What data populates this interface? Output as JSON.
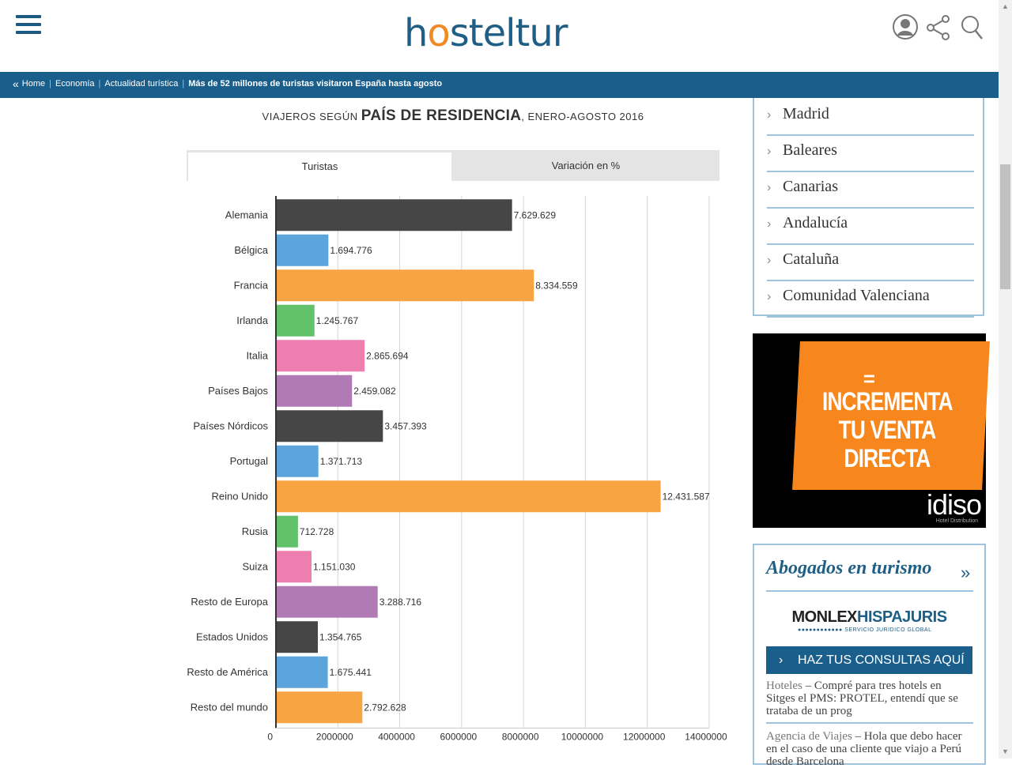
{
  "header": {
    "logo_pre": "h",
    "logo_o": "o",
    "logo_post": "steltur"
  },
  "breadcrumb": {
    "items": [
      "Home",
      "Economía",
      "Actualidad turística"
    ],
    "current": "Más de 52 millones de turistas visitaron España hasta agosto"
  },
  "chart_section": {
    "title_pre": "VIAJEROS SEGÚN ",
    "title_bold": "PAÍS DE RESIDENCIA",
    "title_post": ", ENERO-AGOSTO 2016",
    "tabs": [
      {
        "label": "Turistas",
        "active": true
      },
      {
        "label": "Variación en %",
        "active": false
      }
    ]
  },
  "chart_data": {
    "type": "bar",
    "orientation": "horizontal",
    "categories": [
      "Alemania",
      "Bélgica",
      "Francia",
      "Irlanda",
      "Italia",
      "Países Bajos",
      "Países Nórdicos",
      "Portugal",
      "Reino Unido",
      "Rusia",
      "Suiza",
      "Resto de Europa",
      "Estados Unidos",
      "Resto de América",
      "Resto del mundo"
    ],
    "values": [
      7629629,
      1694776,
      8334559,
      1245767,
      2865694,
      2459082,
      3457393,
      1371713,
      12431587,
      712728,
      1151030,
      3288716,
      1354765,
      1675441,
      2792628
    ],
    "value_labels": [
      "7.629.629",
      "1.694.776",
      "8.334.559",
      "1.245.767",
      "2.865.694",
      "2.459.082",
      "3.457.393",
      "1.371.713",
      "12.431.587",
      "712.728",
      "1.151.030",
      "3.288.716",
      "1.354.765",
      "1.675.441",
      "2.792.628"
    ],
    "colors": [
      "#464646",
      "#5ba4dc",
      "#f8a443",
      "#64c16b",
      "#ef7eb0",
      "#b07ab4"
    ],
    "xlim": [
      0,
      14000000
    ],
    "xticks": [
      0,
      2000000,
      4000000,
      6000000,
      8000000,
      10000000,
      12000000,
      14000000
    ],
    "xtick_labels": [
      "0",
      "2000000",
      "4000000",
      "6000000",
      "8000000",
      "10000000",
      "12000000",
      "14000000"
    ],
    "grid": true
  },
  "sidebar": {
    "regions": [
      "Madrid",
      "Baleares",
      "Canarias",
      "Andalucía",
      "Cataluña",
      "Comunidad Valenciana"
    ],
    "ad": {
      "mark": "=",
      "line1": "INCREMENTA",
      "line2": "TU VENTA",
      "line3": "DIRECTA",
      "brand": "idiso",
      "brand_sub": "Hotel Distribution"
    },
    "legal": {
      "title": "Abogados en turismo",
      "logo_dark": "MONLEX",
      "logo_blue": "HISPAJURIS",
      "logo_sub": "SERVICIO JURIDICO GLOBAL",
      "cta": "HAZ TUS CONSULTAS AQUÍ",
      "entries": [
        {
          "cat": "Hoteles",
          "text": " – Compré para tres hotels en Sitges el PMS: PROTEL, entendí que se trataba de un prog"
        },
        {
          "cat": "Agencia de Viajes",
          "text": " – Hola que debo hacer en el caso de una cliente que viajo a Perú desde Barcelona"
        }
      ]
    }
  },
  "colors": {
    "brand_blue": "#1f5f86",
    "brand_orange": "#f08a24",
    "crumb_bar": "#1a5f8c",
    "sidebar_border": "#9fc3dd"
  }
}
